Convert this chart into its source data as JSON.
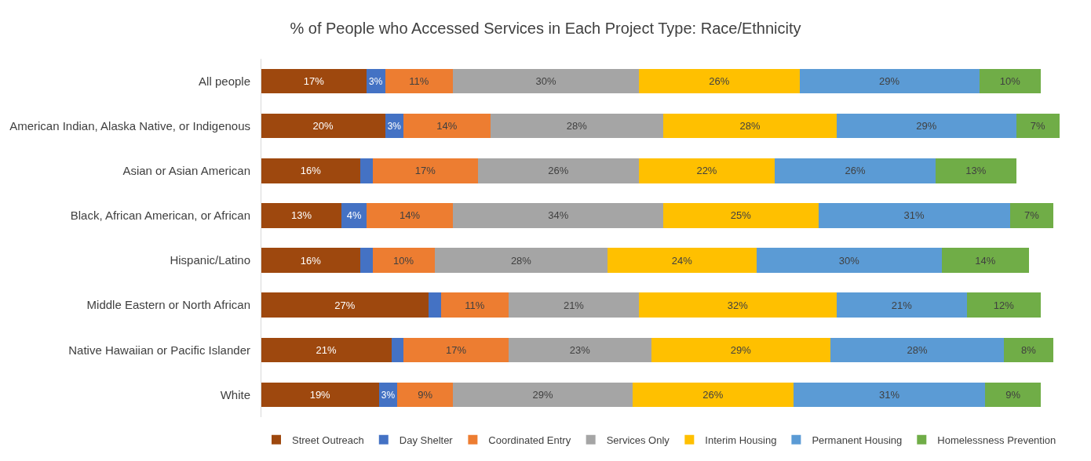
{
  "chart_data": {
    "type": "bar",
    "orientation": "horizontal",
    "stacked": true,
    "title": "% of People who Accessed Services in Each Project Type: Race/Ethnicity",
    "legend": "bottom",
    "categories": [
      "All people",
      "American Indian, Alaska Native, or Indigenous",
      "Asian or Asian American",
      "Black, African American, or African",
      "Hispanic/Latino",
      "Middle Eastern or North African",
      "Native Hawaiian or Pacific Islander",
      "White"
    ],
    "series": [
      {
        "name": "Street Outreach",
        "color": "#9e480e",
        "values": [
          17,
          20,
          16,
          13,
          16,
          27,
          21,
          19
        ],
        "value_labels": [
          "17%",
          "20%",
          "16%",
          "13%",
          "16%",
          "27%",
          "21%",
          "19%"
        ]
      },
      {
        "name": "Day Shelter",
        "color": "#4472c4",
        "values": [
          3,
          3,
          2,
          4,
          2,
          2,
          2,
          3
        ],
        "value_labels": [
          "3%",
          "3%",
          null,
          "4%",
          null,
          null,
          null,
          "3%"
        ]
      },
      {
        "name": "Coordinated Entry",
        "color": "#ed7d31",
        "values": [
          11,
          14,
          17,
          14,
          10,
          11,
          17,
          9
        ],
        "value_labels": [
          "11%",
          "14%",
          "17%",
          "14%",
          "10%",
          "11%",
          "17%",
          "9%"
        ]
      },
      {
        "name": "Services Only",
        "color": "#a5a5a5",
        "values": [
          30,
          28,
          26,
          34,
          28,
          21,
          23,
          29
        ],
        "value_labels": [
          "30%",
          "28%",
          "26%",
          "34%",
          "28%",
          "21%",
          "23%",
          "29%"
        ]
      },
      {
        "name": "Interim Housing",
        "color": "#ffc000",
        "values": [
          26,
          28,
          22,
          25,
          24,
          32,
          29,
          26
        ],
        "value_labels": [
          "26%",
          "28%",
          "22%",
          "25%",
          "24%",
          "32%",
          "29%",
          "26%"
        ]
      },
      {
        "name": "Permanent Housing",
        "color": "#5b9bd5",
        "values": [
          29,
          29,
          26,
          31,
          30,
          21,
          28,
          31
        ],
        "value_labels": [
          "29%",
          "29%",
          "26%",
          "31%",
          "30%",
          "21%",
          "28%",
          "31%"
        ]
      },
      {
        "name": "Homelessness Prevention",
        "color": "#70ad47",
        "values": [
          10,
          7,
          13,
          7,
          14,
          12,
          8,
          9
        ],
        "value_labels": [
          "10%",
          "7%",
          "13%",
          "7%",
          "14%",
          "12%",
          "8%",
          "9%"
        ]
      }
    ]
  }
}
